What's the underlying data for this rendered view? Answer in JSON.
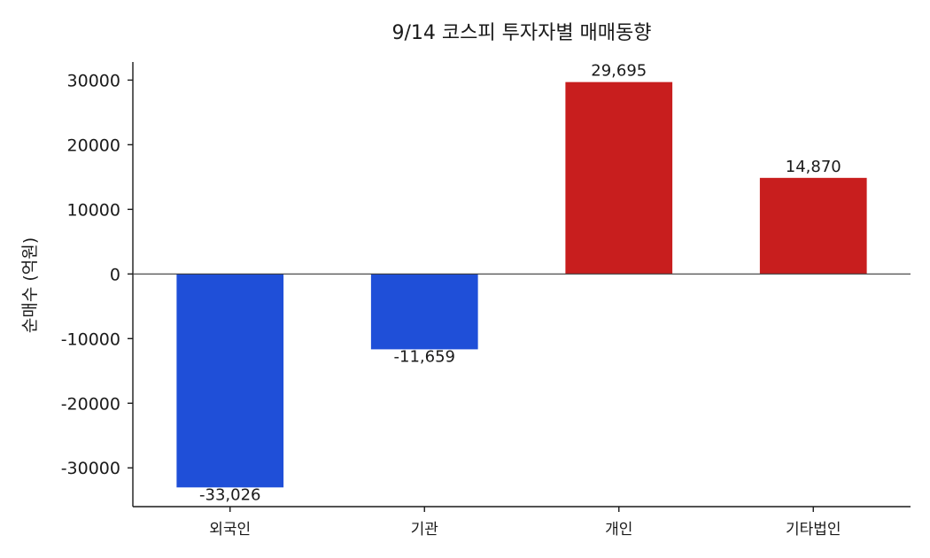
{
  "chart_data": {
    "type": "bar",
    "title": "9/14 코스피 투자자별 매매동향",
    "xlabel": "",
    "ylabel": "순매수 (억원)",
    "categories": [
      "외국인",
      "기관",
      "개인",
      "기타법인"
    ],
    "values": [
      -33026,
      -11659,
      29695,
      14870
    ],
    "value_labels": [
      "-33,026",
      "-11,659",
      "29,695",
      "14,870"
    ],
    "colors": [
      "#1f4fd8",
      "#1f4fd8",
      "#c81e1e",
      "#c81e1e"
    ],
    "ylim": [
      -36000,
      32800
    ],
    "yticks": [
      30000,
      20000,
      10000,
      0,
      -10000,
      -20000,
      -30000
    ],
    "ytick_labels": [
      "30000",
      "20000",
      "10000",
      "0",
      "-10000",
      "-20000",
      "-30000"
    ],
    "grid": false,
    "legend": "none"
  }
}
